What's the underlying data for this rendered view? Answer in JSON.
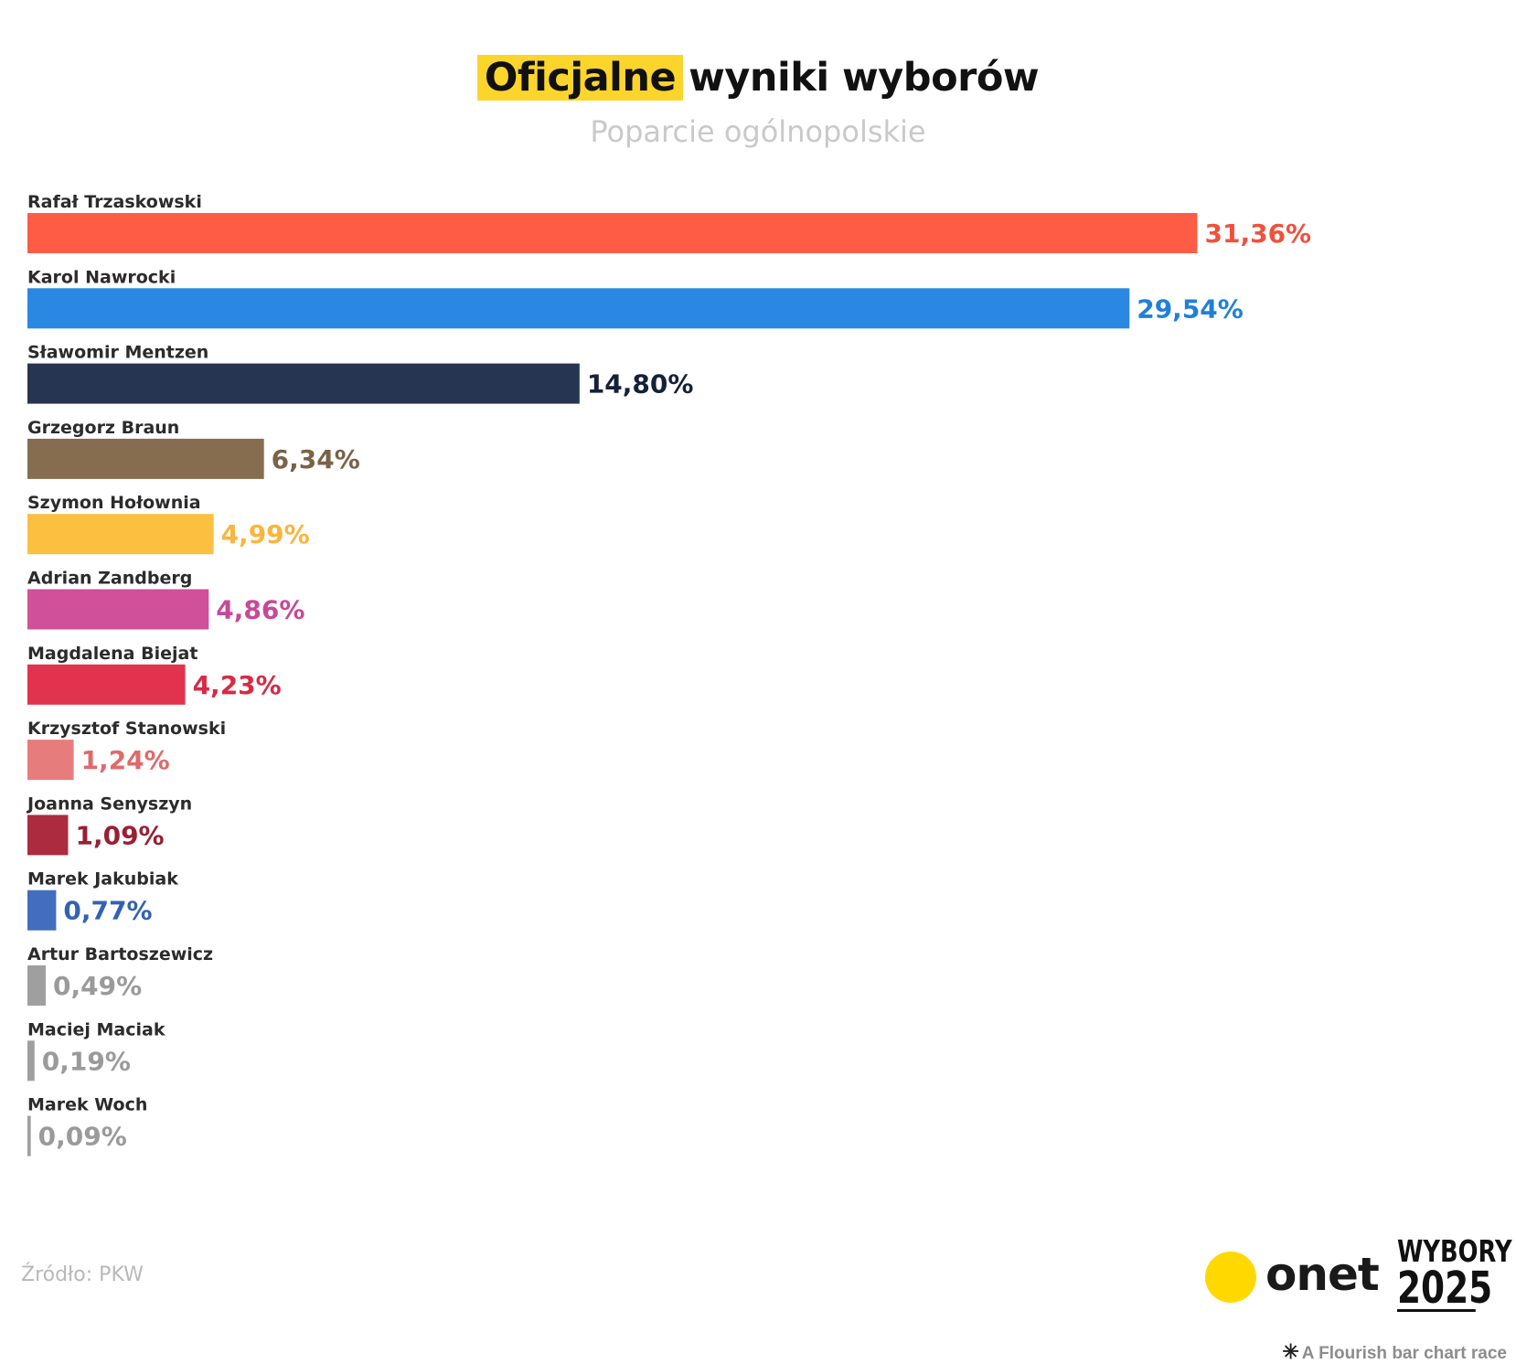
{
  "header": {
    "title_highlight": "Oficjalne",
    "title_rest": "wyniki wyborów",
    "subtitle": "Poparcie ogólnopolskie"
  },
  "chart_data": {
    "type": "bar",
    "orientation": "horizontal",
    "title": "Oficjalne wyniki wyborów",
    "subtitle": "Poparcie ogólnopolskie",
    "value_suffix": "%",
    "categories": [
      "Rafał Trzaskowski",
      "Karol Nawrocki",
      "Sławomir Mentzen",
      "Grzegorz Braun",
      "Szymon Hołownia",
      "Adrian Zandberg",
      "Magdalena Biejat",
      "Krzysztof Stanowski",
      "Joanna Senyszyn",
      "Marek Jakubiak",
      "Artur Bartoszewicz",
      "Maciej Maciak",
      "Marek Woch"
    ],
    "values": [
      31.36,
      29.54,
      14.8,
      6.34,
      4.99,
      4.86,
      4.23,
      1.24,
      1.09,
      0.77,
      0.49,
      0.19,
      0.09
    ],
    "value_labels": [
      "31,36%",
      "29,54%",
      "14,80%",
      "6,34%",
      "4,99%",
      "4,86%",
      "4,23%",
      "1,24%",
      "1,09%",
      "0,77%",
      "0,49%",
      "0,19%",
      "0,09%"
    ],
    "bar_colors": [
      "#ff5c45",
      "#2a88e2",
      "#263550",
      "#866d50",
      "#fbc040",
      "#d0509a",
      "#e1334d",
      "#e77c7c",
      "#ac2b3e",
      "#436ebf",
      "#9f9f9f",
      "#9f9f9f",
      "#9f9f9f"
    ],
    "label_colors": [
      "#f0513d",
      "#1f80d9",
      "#15203a",
      "#7a6246",
      "#f9b53c",
      "#c84897",
      "#d92a45",
      "#e06a6a",
      "#9a1f33",
      "#3361b3",
      "#9a9a9a",
      "#9a9a9a",
      "#9a9a9a"
    ],
    "grid": false,
    "legend": "none"
  },
  "footer": {
    "source": "Źródło: PKW",
    "brand": "onet",
    "campaign_line1": "WYBORY",
    "campaign_line2": "2025",
    "credit": "A Flourish bar chart race"
  }
}
